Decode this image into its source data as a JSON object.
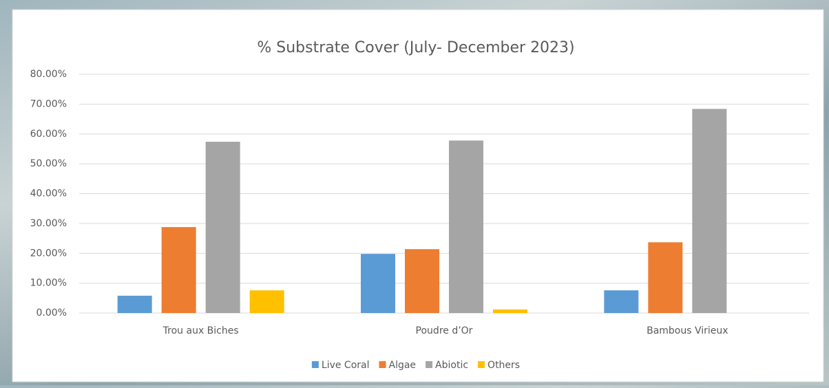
{
  "chart_data": {
    "type": "bar",
    "title": "% Substrate Cover (July- December 2023)",
    "categories": [
      "Trou aux Biches",
      "Poudre d’Or",
      "Bambous Virieux"
    ],
    "series": [
      {
        "name": "Live Coral",
        "color": "#5b9bd5",
        "values": [
          5.8,
          19.8,
          7.6
        ]
      },
      {
        "name": "Algae",
        "color": "#ed7d31",
        "values": [
          28.8,
          21.4,
          23.7
        ]
      },
      {
        "name": "Abiotic",
        "color": "#a5a5a5",
        "values": [
          57.4,
          57.8,
          68.4
        ]
      },
      {
        "name": "Others",
        "color": "#ffc000",
        "values": [
          7.6,
          1.2,
          0
        ]
      }
    ],
    "ylim": [
      0,
      80
    ],
    "yticks": [
      {
        "value": 0,
        "label": "0.00%"
      },
      {
        "value": 10,
        "label": "10.00%"
      },
      {
        "value": 20,
        "label": "20.00%"
      },
      {
        "value": 30,
        "label": "30.00%"
      },
      {
        "value": 40,
        "label": "40.00%"
      },
      {
        "value": 50,
        "label": "50.00%"
      },
      {
        "value": 60,
        "label": "60.00%"
      },
      {
        "value": 70,
        "label": "70.00%"
      },
      {
        "value": 80,
        "label": "80.00%"
      }
    ],
    "grid": true,
    "legend": "bottom"
  }
}
